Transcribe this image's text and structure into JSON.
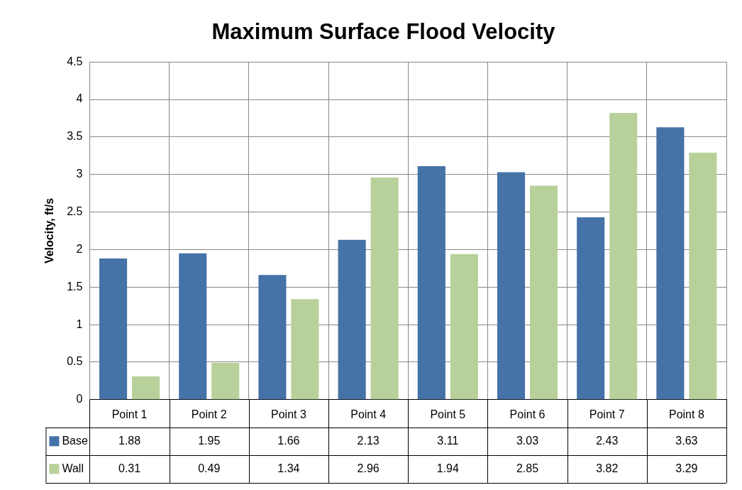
{
  "chart_data": {
    "type": "bar",
    "title": "Maximum Surface Flood Velocity",
    "ylabel": "Velocity, ft/s",
    "categories": [
      "Point 1",
      "Point 2",
      "Point 3",
      "Point 4",
      "Point 5",
      "Point 6",
      "Point 7",
      "Point 8"
    ],
    "series": [
      {
        "name": "Base",
        "color": "#4572a7",
        "values": [
          1.88,
          1.95,
          1.66,
          2.13,
          3.11,
          3.03,
          2.43,
          3.63
        ]
      },
      {
        "name": "Wall",
        "color": "#b8d19a",
        "values": [
          0.31,
          0.49,
          1.34,
          2.96,
          1.94,
          2.85,
          3.82,
          3.29
        ]
      }
    ],
    "ylim": [
      0,
      4.5
    ],
    "yticks": [
      0,
      0.5,
      1,
      1.5,
      2,
      2.5,
      3,
      3.5,
      4,
      4.5
    ],
    "grid": true,
    "legend": "bottom",
    "data_labels": true
  }
}
